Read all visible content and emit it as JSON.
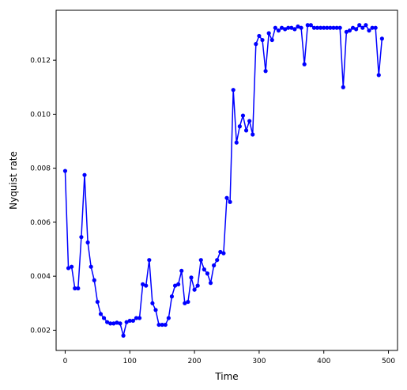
{
  "chart_data": {
    "type": "line",
    "title": "",
    "xlabel": "Time",
    "ylabel": "Nyquist rate",
    "xlim": [
      -14,
      514
    ],
    "ylim": [
      0.00125,
      0.01385
    ],
    "xticks": [
      0,
      100,
      200,
      300,
      400,
      500
    ],
    "xtick_labels": [
      "0",
      "100",
      "200",
      "300",
      "400",
      "500"
    ],
    "yticks": [
      0.002,
      0.004,
      0.006,
      0.008,
      0.01,
      0.012
    ],
    "ytick_labels": [
      "0.002",
      "0.004",
      "0.006",
      "0.008",
      "0.010",
      "0.012"
    ],
    "grid": false,
    "series": [
      {
        "color": "#0000ff",
        "marker": "circle",
        "x": [
          0,
          5,
          10,
          15,
          20,
          25,
          30,
          35,
          40,
          45,
          50,
          55,
          60,
          65,
          70,
          75,
          80,
          85,
          90,
          95,
          100,
          105,
          110,
          115,
          120,
          125,
          130,
          135,
          140,
          145,
          150,
          155,
          160,
          165,
          170,
          175,
          180,
          185,
          190,
          195,
          200,
          205,
          210,
          215,
          220,
          225,
          230,
          235,
          240,
          245,
          250,
          255,
          260,
          265,
          270,
          275,
          280,
          285,
          290,
          295,
          300,
          305,
          310,
          315,
          320,
          325,
          330,
          335,
          340,
          345,
          350,
          355,
          360,
          365,
          370,
          375,
          380,
          385,
          390,
          395,
          400,
          405,
          410,
          415,
          420,
          425,
          430,
          435,
          440,
          445,
          450,
          455,
          460,
          465,
          470,
          475,
          480,
          485,
          490
        ],
        "y": [
          0.0079,
          0.0043,
          0.00435,
          0.00355,
          0.00355,
          0.00545,
          0.00775,
          0.00525,
          0.00435,
          0.00385,
          0.00305,
          0.0026,
          0.00245,
          0.0023,
          0.00225,
          0.00225,
          0.00228,
          0.00225,
          0.0018,
          0.0023,
          0.00235,
          0.00235,
          0.00245,
          0.00245,
          0.0037,
          0.00365,
          0.0046,
          0.003,
          0.00275,
          0.0022,
          0.0022,
          0.0022,
          0.00245,
          0.00325,
          0.00365,
          0.0037,
          0.0042,
          0.003,
          0.00305,
          0.00395,
          0.0035,
          0.00365,
          0.0046,
          0.00425,
          0.0041,
          0.00375,
          0.0044,
          0.0046,
          0.0049,
          0.00485,
          0.0069,
          0.00675,
          0.0109,
          0.00895,
          0.00955,
          0.00995,
          0.0094,
          0.00975,
          0.00925,
          0.0126,
          0.0129,
          0.01275,
          0.0116,
          0.013,
          0.01275,
          0.0132,
          0.0131,
          0.0132,
          0.01315,
          0.0132,
          0.0132,
          0.01315,
          0.01325,
          0.0132,
          0.01185,
          0.0133,
          0.0133,
          0.0132,
          0.0132,
          0.0132,
          0.0132,
          0.0132,
          0.0132,
          0.0132,
          0.0132,
          0.0132,
          0.011,
          0.01305,
          0.0131,
          0.0132,
          0.01315,
          0.0133,
          0.0132,
          0.0133,
          0.0131,
          0.0132,
          0.0132,
          0.01145,
          0.0128
        ]
      }
    ]
  }
}
